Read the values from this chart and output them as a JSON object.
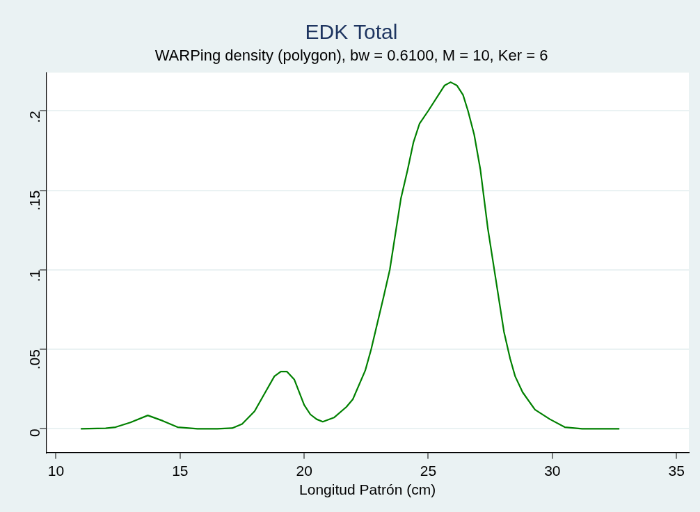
{
  "chart_data": {
    "type": "line",
    "title": "EDK Total",
    "subtitle": "WARPing density (polygon), bw = 0.6100, M = 10, Ker = 6",
    "xlabel": "Longitud Patrón (cm)",
    "xlim": [
      9.6,
      35.5
    ],
    "xticks": [
      10,
      15,
      20,
      25,
      30,
      35
    ],
    "ylim": [
      -0.015,
      0.224
    ],
    "yticks": [
      0,
      {
        "value": 0.05,
        "label": ".05"
      },
      {
        "value": 0.1,
        "label": ".1"
      },
      {
        "value": 0.15,
        "label": ".15"
      },
      {
        "value": 0.2,
        "label": ".2"
      }
    ],
    "grid": "y",
    "legend": false,
    "marker": "none",
    "line_style": "solid",
    "series": [
      {
        "color": "#008000",
        "x": [
          11.0,
          12.0,
          12.4,
          13.0,
          13.7,
          14.3,
          14.9,
          15.7,
          16.5,
          17.1,
          17.5,
          18.0,
          18.4,
          18.8,
          19.06,
          19.3,
          19.6,
          20.0,
          20.25,
          20.5,
          20.75,
          21.2,
          21.7,
          21.96,
          22.46,
          22.7,
          23.2,
          23.45,
          23.9,
          24.17,
          24.4,
          24.65,
          25.0,
          25.66,
          25.9,
          26.15,
          26.4,
          26.6,
          26.85,
          27.1,
          27.4,
          27.7,
          28.05,
          28.3,
          28.5,
          28.8,
          29.3,
          29.9,
          30.5,
          31.2,
          32.0,
          32.7
        ],
        "values": [
          0,
          0.0003,
          0.001,
          0.004,
          0.0084,
          0.005,
          0.001,
          0,
          0,
          0.0004,
          0.003,
          0.011,
          0.022,
          0.033,
          0.036,
          0.036,
          0.031,
          0.015,
          0.009,
          0.006,
          0.0044,
          0.007,
          0.0137,
          0.0185,
          0.0366,
          0.05,
          0.083,
          0.1,
          0.145,
          0.163,
          0.18,
          0.192,
          0.2,
          0.216,
          0.218,
          0.216,
          0.21,
          0.2,
          0.185,
          0.163,
          0.126,
          0.096,
          0.061,
          0.044,
          0.033,
          0.023,
          0.012,
          0.006,
          0.001,
          0,
          0,
          0
        ]
      }
    ]
  }
}
